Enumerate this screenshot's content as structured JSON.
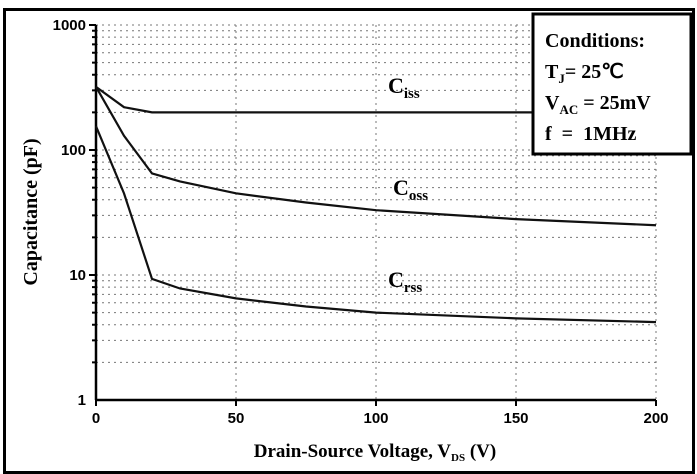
{
  "chart_data": {
    "type": "line",
    "title": "",
    "xlabel": "Drain-Source Voltage, V",
    "xlabel_sub": "DS",
    "xlabel_unit": " (V)",
    "ylabel": "Capacitance  (pF)",
    "xlim": [
      0,
      200
    ],
    "ylim": [
      1,
      1000
    ],
    "yscale": "log",
    "grid": true,
    "x_ticks": [
      "0",
      "50",
      "100",
      "150",
      "200"
    ],
    "y_ticks": [
      "1",
      "10",
      "100",
      "1000"
    ],
    "series": [
      {
        "name": "C",
        "sub": "iss",
        "x": [
          0,
          10,
          20,
          50,
          100,
          150,
          200
        ],
        "y": [
          320,
          220,
          200,
          200,
          200,
          200,
          200
        ]
      },
      {
        "name": "C",
        "sub": "oss",
        "x": [
          0,
          10,
          20,
          30,
          50,
          75,
          100,
          150,
          200
        ],
        "y": [
          320,
          130,
          65,
          56,
          45,
          38,
          33,
          28,
          25
        ]
      },
      {
        "name": "C",
        "sub": "rss",
        "x": [
          0,
          10,
          20,
          30,
          50,
          75,
          100,
          150,
          200
        ],
        "y": [
          155,
          45,
          9.3,
          7.8,
          6.5,
          5.6,
          5.0,
          4.5,
          4.2
        ]
      }
    ],
    "conditions": {
      "title": "Conditions:",
      "lines": [
        {
          "main": "T",
          "sub": "J",
          "rest": "= 25℃"
        },
        {
          "main": "V",
          "sub": "AC",
          "rest": " = 25mV"
        },
        {
          "main": "f",
          "sub": "",
          "rest": "  =  1MHz"
        }
      ]
    }
  }
}
